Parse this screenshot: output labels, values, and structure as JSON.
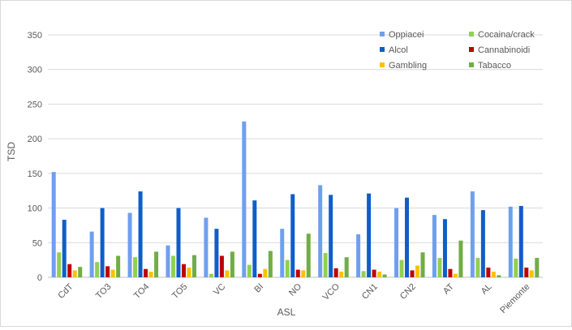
{
  "chart_data": {
    "type": "bar",
    "title": "",
    "xlabel": "ASL",
    "ylabel": "TSD",
    "ylim": [
      0,
      350
    ],
    "yticks": [
      0,
      50,
      100,
      150,
      200,
      250,
      300,
      350
    ],
    "grid": true,
    "legend_position": "top-right",
    "categories": [
      "CdT",
      "TO3",
      "TO4",
      "TO5",
      "VC",
      "BI",
      "NO",
      "VCO",
      "CN1",
      "CN2",
      "AT",
      "AL",
      "Piemonte"
    ],
    "series": [
      {
        "name": "Oppiacei",
        "color": "#6f9fef",
        "values": [
          152,
          66,
          93,
          46,
          86,
          225,
          70,
          133,
          62,
          100,
          90,
          124,
          102
        ]
      },
      {
        "name": "Cocaina/crack",
        "color": "#92d050",
        "values": [
          36,
          22,
          29,
          31,
          5,
          18,
          25,
          35,
          9,
          25,
          28,
          28,
          27
        ]
      },
      {
        "name": "Alcol",
        "color": "#0f5ec8",
        "values": [
          83,
          100,
          124,
          100,
          70,
          111,
          120,
          119,
          121,
          115,
          84,
          97,
          103
        ]
      },
      {
        "name": "Cannabinoidi",
        "color": "#c00000",
        "values": [
          19,
          16,
          12,
          19,
          31,
          5,
          11,
          13,
          11,
          10,
          12,
          14,
          14
        ]
      },
      {
        "name": "Gambling",
        "color": "#ffc000",
        "values": [
          10,
          11,
          8,
          14,
          10,
          12,
          10,
          8,
          8,
          17,
          5,
          8,
          10
        ]
      },
      {
        "name": "Tabacco",
        "color": "#70ad47",
        "values": [
          15,
          31,
          37,
          32,
          37,
          38,
          63,
          29,
          4,
          36,
          53,
          3,
          28
        ]
      }
    ]
  }
}
